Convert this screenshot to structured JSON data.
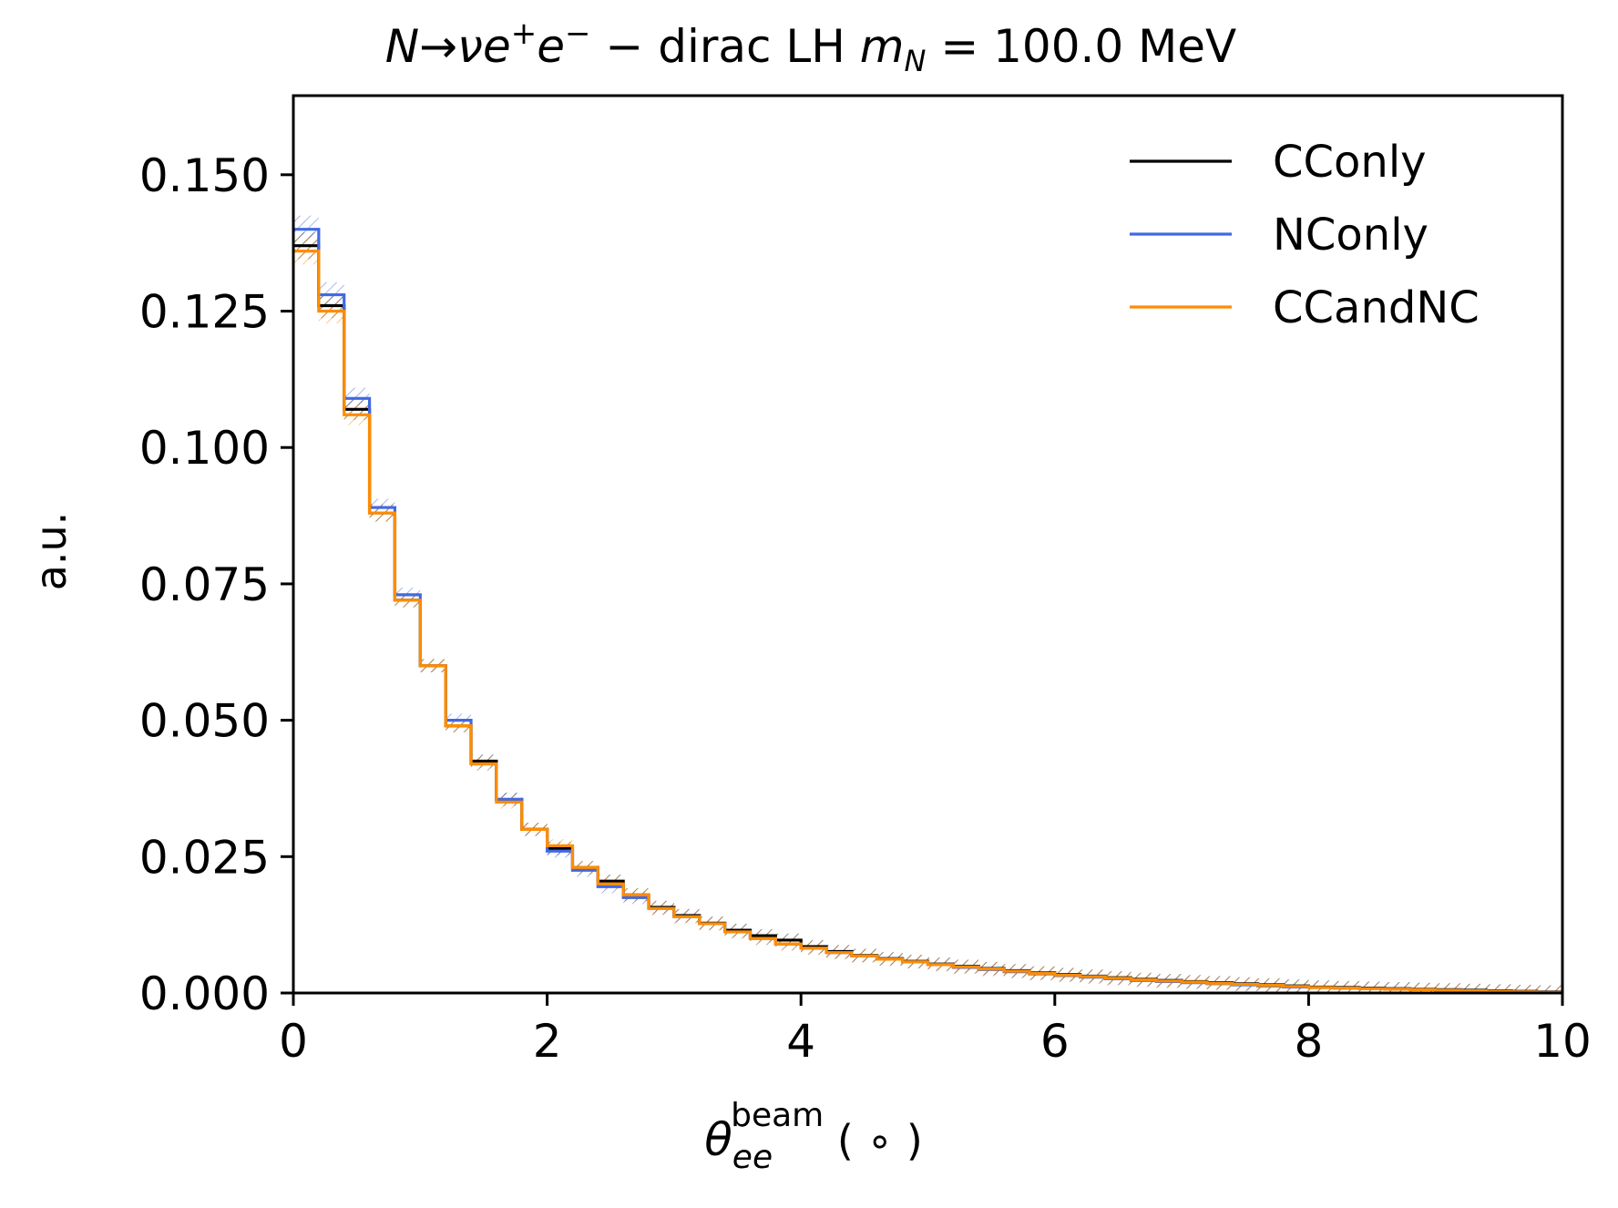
{
  "chart_data": {
    "type": "line",
    "step": "post",
    "title": "N→νe⁺e⁻ − dirac LH m_N = 100.0 MeV",
    "title_parts": {
      "process": "N→νe",
      "sup1": "+",
      "mid": "e",
      "sup2": "−",
      "dash": " − ",
      "desc": "dirac LH ",
      "mass_symbol": "m",
      "mass_sub": "N",
      "mass_value": " = 100.0 MeV"
    },
    "xlabel": "θ_ee^beam (°)",
    "xlabel_parts": {
      "theta": "θ",
      "sub": "ee",
      "sup": "beam",
      "unit": " ( ∘ )"
    },
    "ylabel": "a.u.",
    "xlim": [
      0,
      10
    ],
    "ylim": [
      0,
      0.1645
    ],
    "xticks": [
      "0",
      "2",
      "4",
      "6",
      "8",
      "10"
    ],
    "xtick_values": [
      0,
      2,
      4,
      6,
      8,
      10
    ],
    "yticks": [
      "0.000",
      "0.025",
      "0.050",
      "0.075",
      "0.100",
      "0.125",
      "0.150"
    ],
    "ytick_values": [
      0,
      0.025,
      0.05,
      0.075,
      0.1,
      0.125,
      0.15
    ],
    "grid": false,
    "legend_position": "top-right",
    "bin_edges": [
      0,
      0.2,
      0.4,
      0.6,
      0.8,
      1.0,
      1.2,
      1.4,
      1.6,
      1.8,
      2.0,
      2.2,
      2.4,
      2.6,
      2.8,
      3.0,
      3.2,
      3.4,
      3.6,
      3.8,
      4.0,
      4.2,
      4.4,
      4.6,
      4.8,
      5.0,
      5.2,
      5.4,
      5.6,
      5.8,
      6.0,
      6.2,
      6.4,
      6.6,
      6.8,
      7.0,
      7.2,
      7.4,
      7.6,
      7.8,
      8.0,
      8.2,
      8.4,
      8.6,
      8.8,
      9.0,
      9.2,
      9.4,
      9.6,
      9.8,
      10.0
    ],
    "series": [
      {
        "name": "CConly",
        "color": "#000000",
        "error_hatch": true,
        "values": [
          0.137,
          0.126,
          0.107,
          0.088,
          0.072,
          0.06,
          0.049,
          0.0425,
          0.0355,
          0.03,
          0.0265,
          0.023,
          0.0205,
          0.018,
          0.0157,
          0.0142,
          0.0128,
          0.0115,
          0.0105,
          0.0097,
          0.0085,
          0.0076,
          0.0069,
          0.0063,
          0.0058,
          0.0053,
          0.0049,
          0.0045,
          0.0041,
          0.0037,
          0.0034,
          0.0031,
          0.0028,
          0.0025,
          0.0023,
          0.0021,
          0.0019,
          0.0017,
          0.0015,
          0.0013,
          0.0011,
          0.001,
          0.0009,
          0.0008,
          0.0007,
          0.0006,
          0.0005,
          0.0004,
          0.0003,
          0.0002
        ]
      },
      {
        "name": "NConly",
        "color": "#4169e1",
        "error_hatch": true,
        "values": [
          0.14,
          0.128,
          0.109,
          0.089,
          0.073,
          0.06,
          0.05,
          0.042,
          0.0355,
          0.03,
          0.026,
          0.0225,
          0.0195,
          0.0175,
          0.0155,
          0.014,
          0.0127,
          0.0112,
          0.01,
          0.009,
          0.0082,
          0.0074,
          0.0068,
          0.0062,
          0.0057,
          0.0052,
          0.0047,
          0.0043,
          0.0039,
          0.0035,
          0.0032,
          0.0029,
          0.0026,
          0.0023,
          0.0021,
          0.0019,
          0.0017,
          0.0015,
          0.0013,
          0.0011,
          0.001,
          0.0009,
          0.0008,
          0.0007,
          0.0006,
          0.0005,
          0.0004,
          0.0003,
          0.0002,
          0.0001
        ]
      },
      {
        "name": "CCandNC",
        "color": "#ff8c00",
        "error_hatch": true,
        "values": [
          0.136,
          0.125,
          0.106,
          0.088,
          0.072,
          0.06,
          0.049,
          0.042,
          0.035,
          0.03,
          0.027,
          0.023,
          0.02,
          0.018,
          0.0155,
          0.014,
          0.0127,
          0.0112,
          0.01,
          0.009,
          0.0082,
          0.0074,
          0.0068,
          0.0062,
          0.0057,
          0.0052,
          0.0048,
          0.0044,
          0.004,
          0.0036,
          0.0033,
          0.003,
          0.0027,
          0.0024,
          0.0022,
          0.002,
          0.0018,
          0.0016,
          0.0014,
          0.0012,
          0.001,
          0.0009,
          0.0008,
          0.0007,
          0.0006,
          0.0005,
          0.0004,
          0.0003,
          0.0002,
          0.0001
        ]
      }
    ]
  }
}
